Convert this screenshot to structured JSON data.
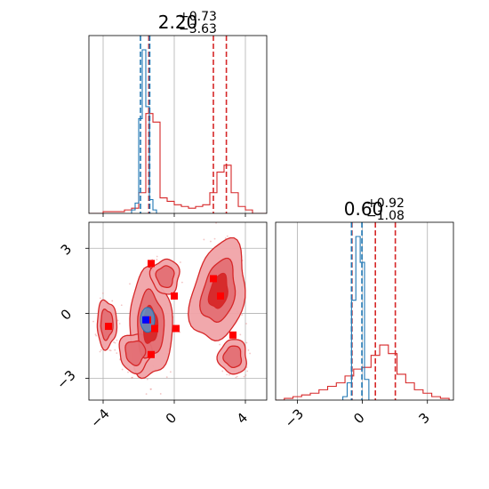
{
  "chart_data": [
    {
      "type": "histogram",
      "panel": "marginal-param-1",
      "title": {
        "value": "2.20",
        "upper": "+0.73",
        "lower": "−3.63"
      },
      "xlim": [
        -4.8,
        5.2
      ],
      "grid": true,
      "series": [
        {
          "color": "#d62728",
          "bins": [
            -4.8,
            -4.4,
            -4.0,
            -3.6,
            -3.2,
            -2.8,
            -2.4,
            -2.0,
            -1.6,
            -1.2,
            -0.8,
            -0.4,
            0.0,
            0.4,
            0.8,
            1.2,
            1.6,
            2.0,
            2.4,
            2.8,
            3.2,
            3.6,
            4.0,
            4.4,
            4.8,
            5.2
          ],
          "density": [
            0.0,
            0.0,
            0.01,
            0.01,
            0.01,
            0.02,
            0.03,
            0.12,
            0.58,
            0.53,
            0.09,
            0.07,
            0.05,
            0.04,
            0.03,
            0.04,
            0.05,
            0.12,
            0.24,
            0.28,
            0.12,
            0.04,
            0.02,
            0.0,
            0.0
          ],
          "quantile_lines": [
            -1.43,
            2.2,
            2.93
          ]
        },
        {
          "color": "#1f77b4",
          "bins": [
            -2.4,
            -2.2,
            -2.0,
            -1.8,
            -1.6,
            -1.4,
            -1.2,
            -1.0
          ],
          "density": [
            0.02,
            0.06,
            0.55,
            0.95,
            0.62,
            0.08,
            0.02
          ],
          "quantile_lines": [
            -1.9,
            -1.38
          ]
        }
      ]
    },
    {
      "type": "histogram",
      "panel": "marginal-param-2",
      "title": {
        "value": "0.60",
        "upper": "+0.92",
        "lower": "−1.08"
      },
      "xlim": [
        -4.0,
        4.2
      ],
      "xticks": [
        "−3",
        "0",
        "3"
      ],
      "grid": true,
      "series": [
        {
          "color": "#d62728",
          "bins": [
            -4.0,
            -3.6,
            -3.2,
            -2.8,
            -2.4,
            -2.0,
            -1.6,
            -1.2,
            -0.8,
            -0.4,
            0.0,
            0.4,
            0.8,
            1.2,
            1.6,
            2.0,
            2.4,
            2.8,
            3.2,
            3.6,
            4.0
          ],
          "density": [
            0.0,
            0.01,
            0.02,
            0.03,
            0.04,
            0.06,
            0.08,
            0.1,
            0.14,
            0.18,
            0.19,
            0.26,
            0.32,
            0.27,
            0.15,
            0.1,
            0.06,
            0.04,
            0.02,
            0.01
          ],
          "quantile_lines": [
            -0.48,
            0.6,
            1.52
          ]
        },
        {
          "color": "#1f77b4",
          "bins": [
            -0.9,
            -0.7,
            -0.5,
            -0.3,
            -0.1,
            0.1,
            0.3
          ],
          "density": [
            0.02,
            0.1,
            0.58,
            0.95,
            0.8,
            0.12
          ],
          "quantile_lines": [
            -0.5,
            -0.02
          ]
        }
      ]
    },
    {
      "type": "contour",
      "panel": "joint-param-1-param-2",
      "xlim": [
        -4.8,
        5.2
      ],
      "ylim": [
        -4.0,
        4.2
      ],
      "xticks": [
        "−4",
        "0",
        "4"
      ],
      "yticks": [
        "3",
        "0",
        "−3"
      ],
      "grid": true,
      "blobs": [
        {
          "cx": 2.5,
          "cy": 1.0,
          "rx": 1.45,
          "ry": 2.35,
          "rot": 12
        },
        {
          "cx": -1.35,
          "cy": -0.55,
          "rx": 1.2,
          "ry": 2.45,
          "rot": 0
        },
        {
          "cx": -3.8,
          "cy": -0.5,
          "rx": 0.55,
          "ry": 1.1,
          "rot": 0
        },
        {
          "cx": -2.2,
          "cy": -1.8,
          "rx": 0.9,
          "ry": 0.9,
          "rot": 0
        },
        {
          "cx": -0.5,
          "cy": 1.7,
          "rx": 0.8,
          "ry": 0.8,
          "rot": 0
        },
        {
          "cx": 3.3,
          "cy": -2.0,
          "rx": 0.8,
          "ry": 0.8,
          "rot": 0
        }
      ],
      "red_points": [
        {
          "x": -1.3,
          "y": 2.3
        },
        {
          "x": 0.0,
          "y": 0.8
        },
        {
          "x": 2.2,
          "y": 1.6
        },
        {
          "x": 2.6,
          "y": 0.8
        },
        {
          "x": -3.7,
          "y": -0.6
        },
        {
          "x": -1.5,
          "y": -0.3
        },
        {
          "x": -1.1,
          "y": -0.7
        },
        {
          "x": 0.1,
          "y": -0.7
        },
        {
          "x": 3.3,
          "y": -1.0
        },
        {
          "x": -1.3,
          "y": -1.9
        }
      ],
      "blue_points": [
        {
          "x": -1.6,
          "y": -0.3
        }
      ]
    }
  ]
}
